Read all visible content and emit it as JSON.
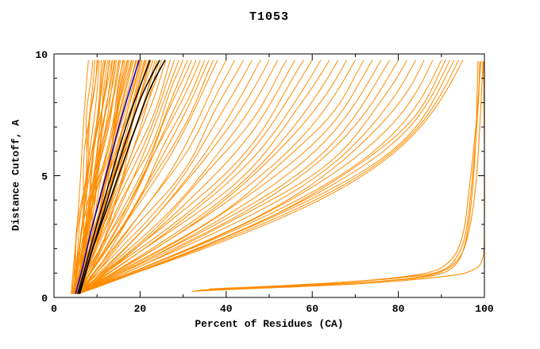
{
  "chart_data": {
    "type": "line",
    "title": "T1053",
    "xlabel": "Percent of Residues (CA)",
    "ylabel": "Distance Cutoff, A",
    "xlim": [
      0,
      100
    ],
    "ylim": [
      0,
      10
    ],
    "x_ticks": [
      0,
      20,
      40,
      60,
      80,
      100
    ],
    "y_ticks": [
      0,
      5,
      10
    ],
    "x_minor_ticks": [
      10,
      30,
      50,
      70,
      90
    ],
    "y_minor_ticks": [
      1,
      2,
      3,
      4,
      6,
      7,
      8,
      9
    ],
    "grid": false,
    "legend": false,
    "colors": {
      "models": "#ff8c00",
      "highlight": "#000000",
      "reference": "#0000cd",
      "frame": "#000000",
      "background": "#ffffff"
    },
    "series": {
      "orange_fan": [
        [
          4.0,
          8
        ],
        [
          4.5,
          9
        ],
        [
          5.0,
          9.5
        ],
        [
          4.2,
          10
        ],
        [
          5.5,
          10.5
        ],
        [
          4.8,
          11
        ],
        [
          5.2,
          11.5
        ],
        [
          4.4,
          12
        ],
        [
          5.8,
          12.5
        ],
        [
          4.6,
          13
        ],
        [
          5.0,
          13.5
        ],
        [
          5.4,
          14
        ],
        [
          4.8,
          14.5
        ],
        [
          5.6,
          15
        ],
        [
          4.3,
          15.5
        ],
        [
          5.1,
          16
        ],
        [
          5.9,
          16.5
        ],
        [
          4.7,
          17
        ],
        [
          5.3,
          17.5
        ],
        [
          4.9,
          18
        ],
        [
          5.5,
          18.5
        ],
        [
          4.5,
          19
        ],
        [
          5.7,
          19.5
        ],
        [
          5.0,
          20
        ],
        [
          4.6,
          20.5
        ],
        [
          5.2,
          21
        ],
        [
          5.8,
          21.5
        ],
        [
          4.8,
          22
        ],
        [
          5.4,
          22.5
        ],
        [
          5.0,
          23
        ],
        [
          5.6,
          24
        ],
        [
          4.7,
          25
        ],
        [
          5.3,
          26
        ],
        [
          5.9,
          27
        ],
        [
          4.9,
          28
        ],
        [
          5.5,
          29
        ],
        [
          5.1,
          30
        ],
        [
          5.7,
          31
        ],
        [
          4.8,
          32
        ],
        [
          5.4,
          33
        ],
        [
          5.0,
          34
        ],
        [
          5.6,
          35
        ],
        [
          5.2,
          36
        ],
        [
          5.8,
          37
        ],
        [
          4.9,
          38
        ],
        [
          5.5,
          40
        ],
        [
          5.1,
          42
        ],
        [
          5.7,
          44
        ],
        [
          5.3,
          46
        ],
        [
          5.9,
          48
        ],
        [
          5.0,
          50
        ],
        [
          5.6,
          52
        ],
        [
          5.2,
          54
        ],
        [
          5.8,
          56
        ],
        [
          5.4,
          58
        ],
        [
          5.0,
          60
        ],
        [
          5.6,
          62
        ],
        [
          5.2,
          64
        ],
        [
          5.8,
          66
        ],
        [
          5.4,
          68
        ],
        [
          5.0,
          70
        ],
        [
          5.6,
          72
        ],
        [
          5.2,
          74
        ],
        [
          5.8,
          76
        ],
        [
          5.4,
          78
        ],
        [
          5.0,
          80
        ],
        [
          5.6,
          82
        ],
        [
          5.2,
          84
        ],
        [
          5.8,
          86
        ],
        [
          5.4,
          88
        ],
        [
          5.0,
          90
        ],
        [
          5.6,
          91
        ],
        [
          5.2,
          92
        ],
        [
          5.8,
          93
        ],
        [
          5.4,
          94
        ],
        [
          5.0,
          95
        ],
        [
          4.1,
          10.2
        ],
        [
          5.3,
          11.8
        ],
        [
          4.9,
          12.8
        ],
        [
          5.7,
          13.6
        ],
        [
          4.4,
          14.2
        ],
        [
          5.2,
          15.2
        ],
        [
          4.8,
          16.2
        ],
        [
          5.6,
          17.2
        ],
        [
          4.5,
          18.2
        ],
        [
          5.1,
          19.2
        ],
        [
          5.9,
          20.2
        ],
        [
          4.7,
          21.2
        ],
        [
          5.3,
          22.2
        ],
        [
          4.6,
          23.5
        ],
        [
          5.8,
          24.5
        ]
      ],
      "orange_flat": [
        [
          [
            32,
            0.25
          ],
          [
            55,
            0.45
          ],
          [
            75,
            0.65
          ],
          [
            88,
            0.9
          ],
          [
            93,
            1.3
          ],
          [
            95.5,
            2.2
          ],
          [
            97,
            4
          ],
          [
            98,
            6.5
          ],
          [
            98.5,
            9.7
          ]
        ],
        [
          [
            34,
            0.3
          ],
          [
            60,
            0.55
          ],
          [
            80,
            0.8
          ],
          [
            90,
            1.1
          ],
          [
            94,
            1.8
          ],
          [
            96,
            3
          ],
          [
            97.5,
            5.5
          ],
          [
            98.6,
            8
          ],
          [
            98.9,
            9.7
          ]
        ],
        [
          [
            36,
            0.35
          ],
          [
            65,
            0.6
          ],
          [
            85,
            0.95
          ],
          [
            92,
            1.5
          ],
          [
            95,
            2.6
          ],
          [
            96.5,
            4.5
          ],
          [
            98,
            7
          ],
          [
            99.2,
            9.7
          ]
        ],
        [
          [
            33,
            0.28
          ],
          [
            58,
            0.5
          ],
          [
            78,
            0.7
          ],
          [
            89,
            1.0
          ],
          [
            94,
            1.6
          ],
          [
            96.5,
            2.8
          ],
          [
            98.2,
            5
          ],
          [
            99.5,
            9.0
          ],
          [
            99.6,
            9.7
          ]
        ],
        [
          [
            37,
            0.3
          ],
          [
            70,
            0.55
          ],
          [
            90,
            0.85
          ],
          [
            97,
            1.1
          ],
          [
            99.6,
            1.6
          ],
          [
            100,
            3
          ],
          [
            100,
            6
          ],
          [
            99.8,
            9.7
          ]
        ]
      ],
      "black_curves": [
        [
          [
            5.5,
            0.15
          ],
          [
            7.5,
            1.4
          ],
          [
            9.8,
            2.9
          ],
          [
            12.3,
            4.4
          ],
          [
            14.8,
            5.9
          ],
          [
            17.6,
            7.5
          ],
          [
            20.5,
            8.9
          ],
          [
            22.3,
            9.75
          ]
        ],
        [
          [
            5.8,
            0.15
          ],
          [
            8.6,
            1.8
          ],
          [
            11.4,
            3.4
          ],
          [
            14.3,
            5.1
          ],
          [
            17.2,
            6.7
          ],
          [
            20.2,
            8.2
          ],
          [
            23.2,
            9.3
          ],
          [
            24.6,
            9.75
          ]
        ],
        [
          [
            6.0,
            0.15
          ],
          [
            9.2,
            2.1
          ],
          [
            12.8,
            3.9
          ],
          [
            16.2,
            5.6
          ],
          [
            19.2,
            7.1
          ],
          [
            22.4,
            8.6
          ],
          [
            25.8,
            9.75
          ]
        ]
      ],
      "blue_curve": [
        [
          5.0,
          0.15
        ],
        [
          6.6,
          1.2
        ],
        [
          8.6,
          2.7
        ],
        [
          10.7,
          4.1
        ],
        [
          12.8,
          5.5
        ],
        [
          14.9,
          6.9
        ],
        [
          16.9,
          8.1
        ],
        [
          18.8,
          9.2
        ],
        [
          19.8,
          9.75
        ]
      ]
    }
  }
}
